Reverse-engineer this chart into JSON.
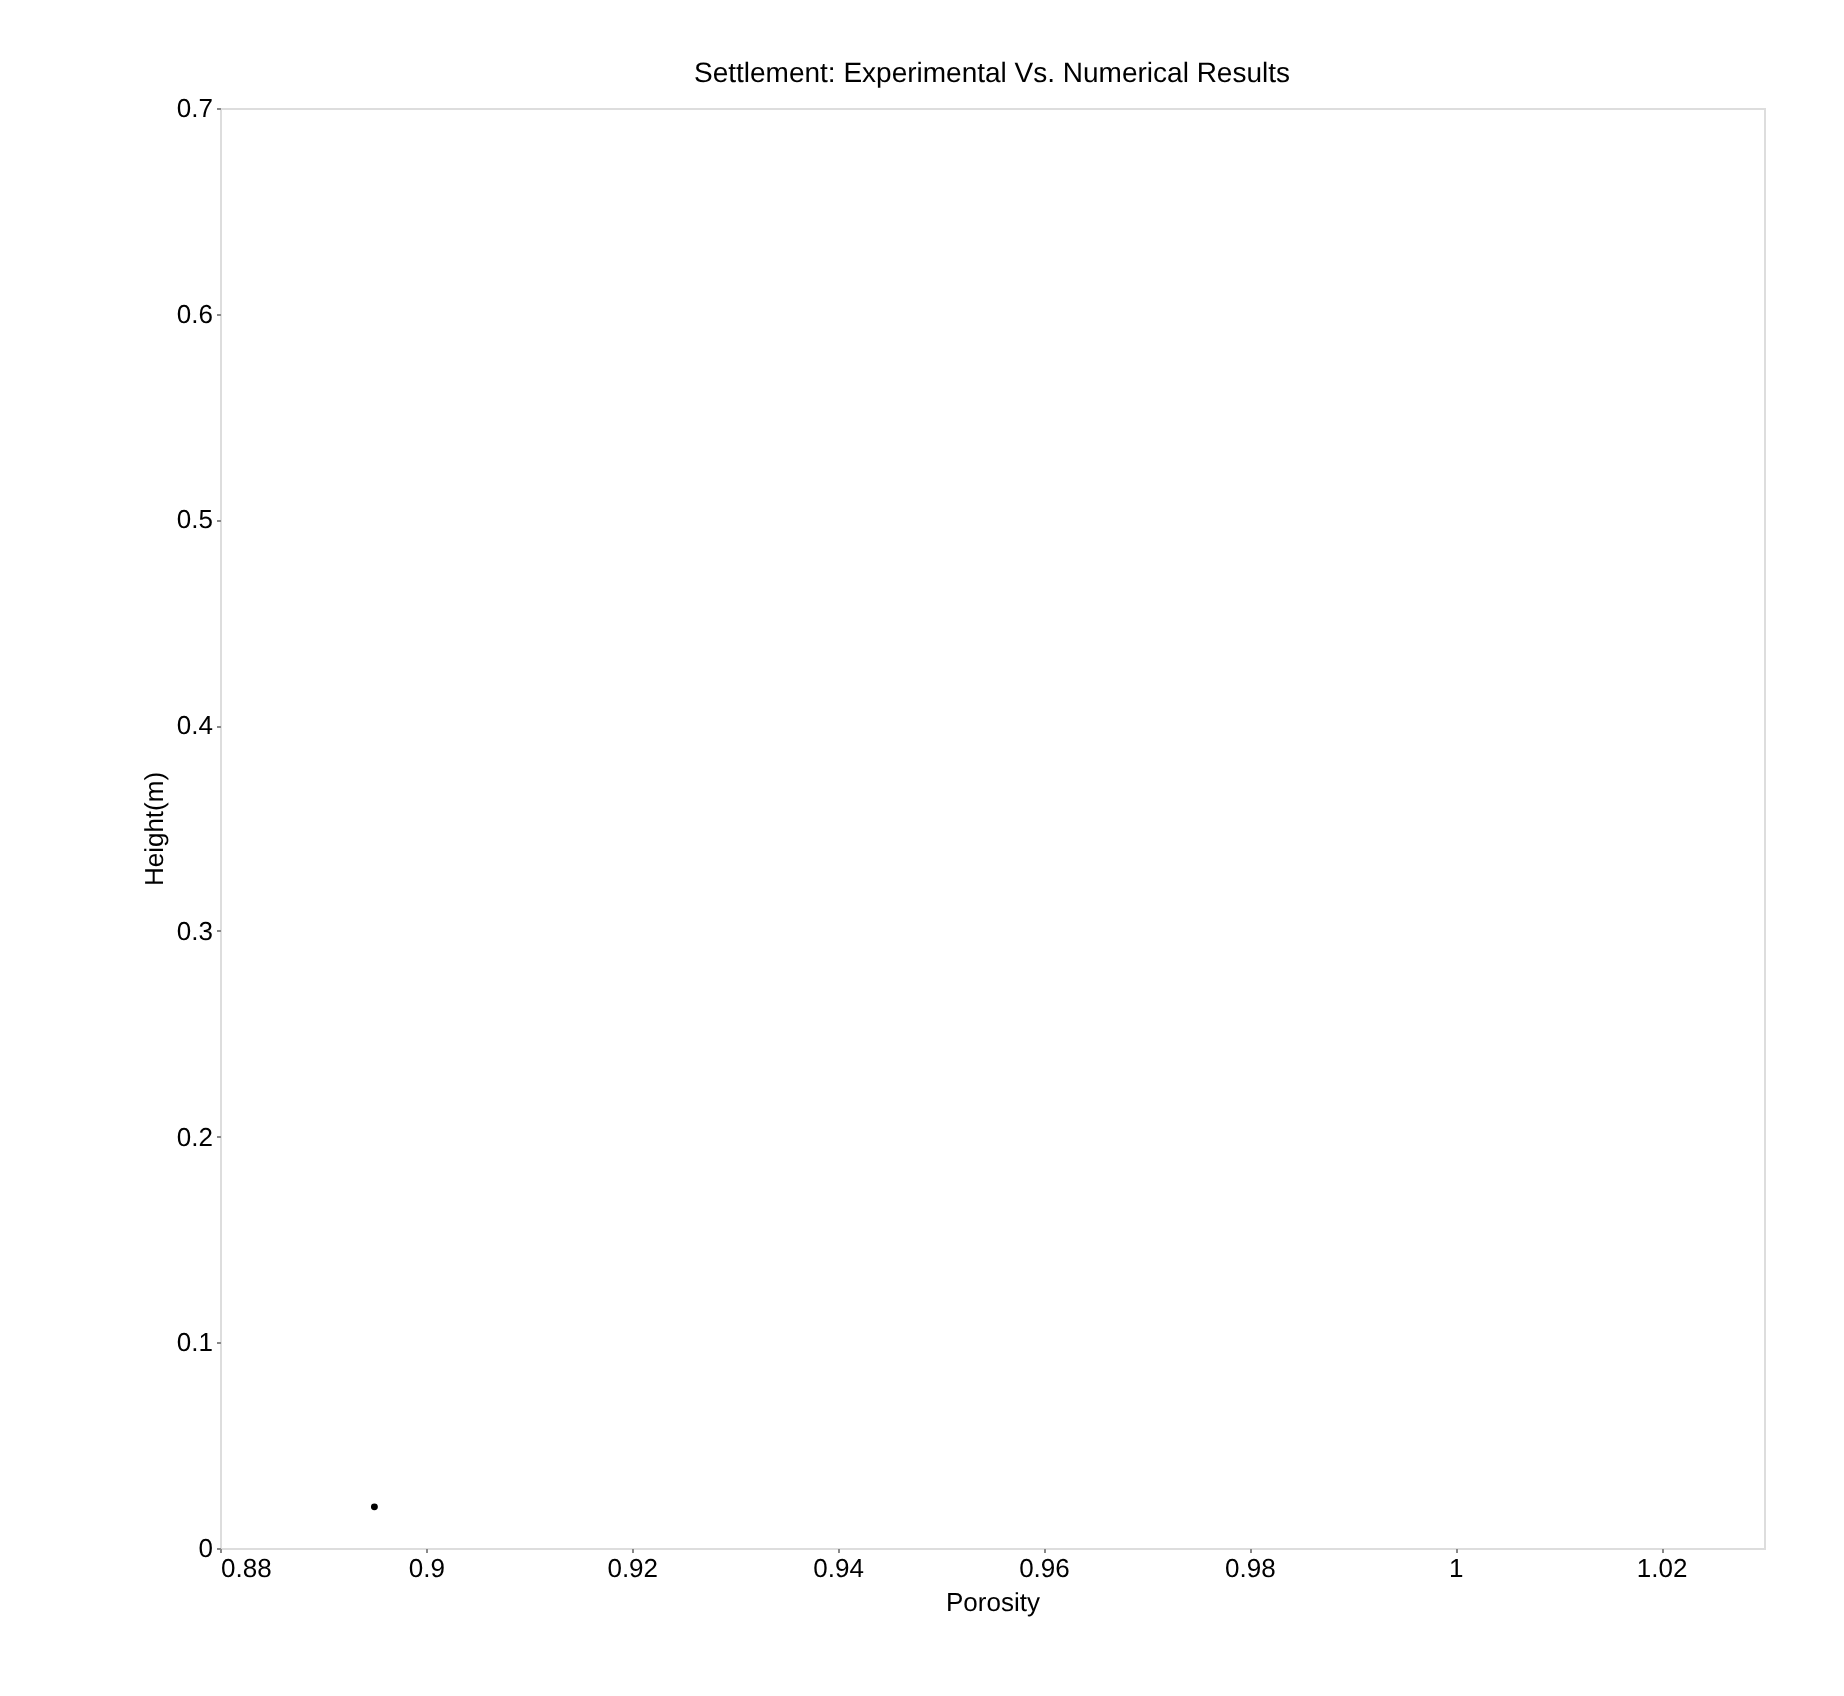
{
  "chart_data": {
    "type": "scatter",
    "title": "Settlement: Experimental Vs. Numerical Results",
    "xlabel": "Porosity",
    "ylabel": "Height(m)",
    "x": [
      0.895
    ],
    "series": [
      {
        "color": "#000000",
        "values": [
          0.02
        ]
      }
    ],
    "xlim": [
      0.88,
      1.03
    ],
    "xticks": [
      0.88,
      0.9,
      0.92,
      0.94,
      0.96,
      0.98,
      1,
      1.02
    ],
    "ylim": [
      0,
      0.7
    ],
    "yticks": [
      0,
      0.1,
      0.2,
      0.3,
      0.4,
      0.5,
      0.6,
      0.7
    ],
    "grid": false
  }
}
